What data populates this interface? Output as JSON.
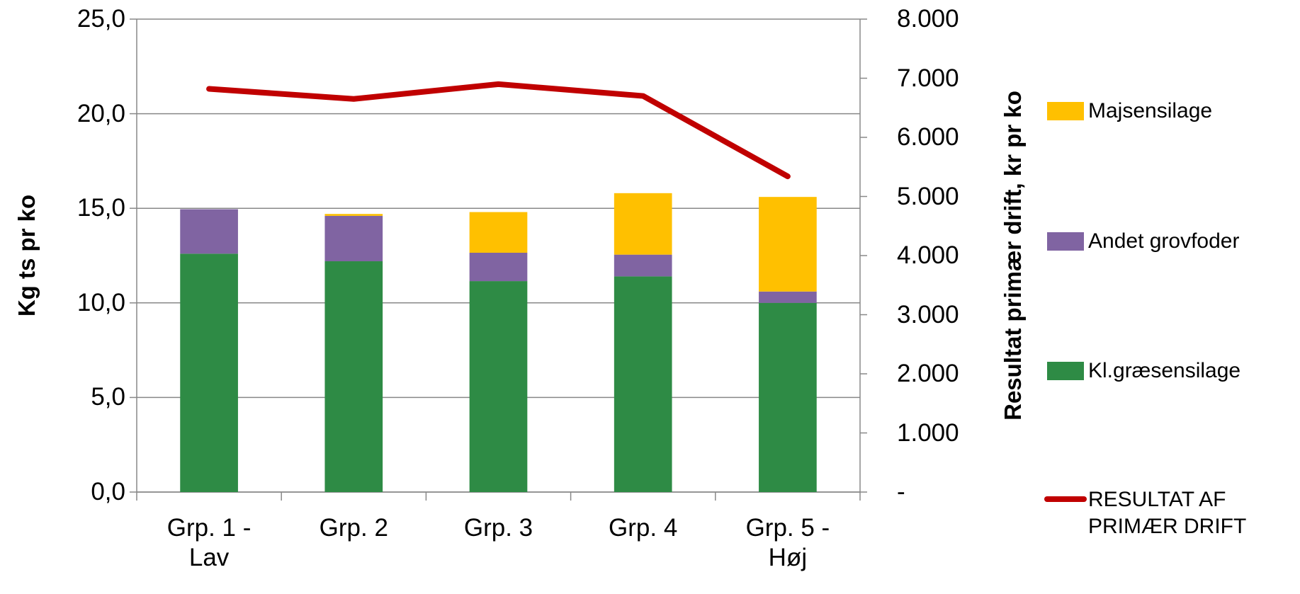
{
  "chart_data": {
    "type": "bar",
    "ylabel": "Kg ts pr ko",
    "y2label": "Resultat primær drift, kr pr ko",
    "categories": [
      "Grp. 1 - Lav",
      "Grp. 2",
      "Grp. 3",
      "Grp. 4",
      "Grp. 5 - Høj"
    ],
    "stacked": true,
    "series": [
      {
        "name": "Kl.græsensilage",
        "color": "#2e8b45",
        "values": [
          12.6,
          12.2,
          11.15,
          11.4,
          10.0
        ]
      },
      {
        "name": "Andet grovfoder",
        "color": "#8064a2",
        "values": [
          2.35,
          2.4,
          1.5,
          1.15,
          0.6
        ]
      },
      {
        "name": "Majsensilage",
        "color": "#ffc000",
        "values": [
          0,
          0.1,
          2.15,
          3.25,
          5.0
        ]
      },
      {
        "name": "RESULTAT AF PRIMÆR DRIFT",
        "color": "#c00000",
        "type": "line",
        "axis": "y2",
        "values": [
          6820,
          6650,
          6900,
          6700,
          5340
        ]
      }
    ],
    "ylim": [
      0,
      25
    ],
    "yticks": [
      {
        "value": 0,
        "label": "0,0"
      },
      {
        "value": 5,
        "label": "5,0"
      },
      {
        "value": 10,
        "label": "10,0"
      },
      {
        "value": 15,
        "label": "15,0"
      },
      {
        "value": 20,
        "label": "20,0"
      },
      {
        "value": 25,
        "label": "25,0"
      }
    ],
    "y2lim": [
      0,
      8000
    ],
    "y2ticks": [
      {
        "value": 0,
        "label": "-"
      },
      {
        "value": 1000,
        "label": "1.000"
      },
      {
        "value": 2000,
        "label": "2.000"
      },
      {
        "value": 3000,
        "label": "3.000"
      },
      {
        "value": 4000,
        "label": "4.000"
      },
      {
        "value": 5000,
        "label": "5.000"
      },
      {
        "value": 6000,
        "label": "6.000"
      },
      {
        "value": 7000,
        "label": "7.000"
      },
      {
        "value": 8000,
        "label": "8.000"
      }
    ],
    "grid": true,
    "legend": "right"
  }
}
